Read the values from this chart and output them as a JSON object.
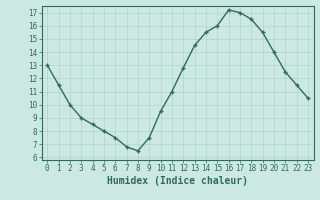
{
  "x": [
    0,
    1,
    2,
    3,
    4,
    5,
    6,
    7,
    8,
    9,
    10,
    11,
    12,
    13,
    14,
    15,
    16,
    17,
    18,
    19,
    20,
    21,
    22,
    23
  ],
  "y": [
    13,
    11.5,
    10,
    9,
    8.5,
    8,
    7.5,
    6.8,
    6.5,
    7.5,
    9.5,
    11.0,
    12.8,
    14.5,
    15.5,
    16.0,
    17.2,
    17.0,
    16.5,
    15.5,
    14.0,
    12.5,
    11.5,
    10.5
  ],
  "line_color": "#2e6b5e",
  "marker": "+",
  "marker_size": 3.5,
  "marker_linewidth": 1.0,
  "bg_color": "#cce8e3",
  "grid_color": "#afd4ce",
  "xlabel": "Humidex (Indice chaleur)",
  "xlim": [
    -0.5,
    23.5
  ],
  "ylim": [
    5.8,
    17.5
  ],
  "yticks": [
    6,
    7,
    8,
    9,
    10,
    11,
    12,
    13,
    14,
    15,
    16,
    17
  ],
  "xticks": [
    0,
    1,
    2,
    3,
    4,
    5,
    6,
    7,
    8,
    9,
    10,
    11,
    12,
    13,
    14,
    15,
    16,
    17,
    18,
    19,
    20,
    21,
    22,
    23
  ],
  "tick_color": "#2e6b5e",
  "label_color": "#2e6b5e",
  "spine_color": "#2e6b5e",
  "xlabel_fontsize": 7,
  "tick_fontsize": 5.5,
  "line_width": 1.0
}
